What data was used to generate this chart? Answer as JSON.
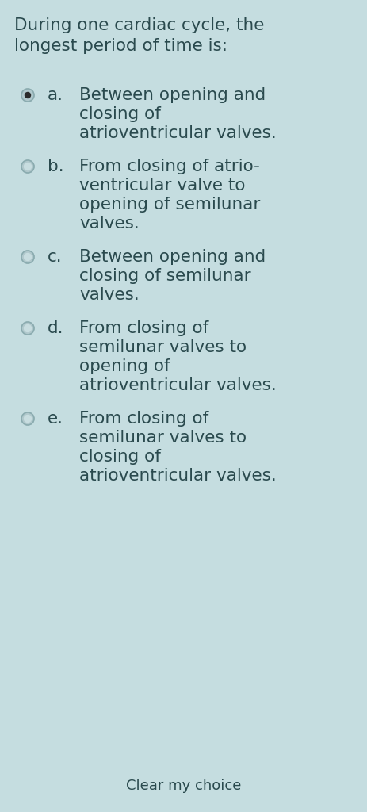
{
  "background_color": "#c5dde0",
  "text_color": "#2a4a4e",
  "title_line1": "During one cardiac cycle, the",
  "title_line2": "longest period of time is:",
  "title_fontsize": 15.5,
  "options": [
    {
      "label": "a.",
      "lines": [
        "Between opening and",
        "closing of",
        "atrioventricular valves."
      ],
      "selected": true
    },
    {
      "label": "b.",
      "lines": [
        "From closing of atrio-",
        "ventricular valve to",
        "opening of semilunar",
        "valves."
      ],
      "selected": false
    },
    {
      "label": "c.",
      "lines": [
        "Between opening and",
        "closing of semilunar",
        "valves."
      ],
      "selected": false
    },
    {
      "label": "d.",
      "lines": [
        "From closing of",
        "semilunar valves to",
        "opening of",
        "atrioventricular valves."
      ],
      "selected": false
    },
    {
      "label": "e.",
      "lines": [
        "From closing of",
        "semilunar valves to",
        "closing of",
        "atrioventricular valves."
      ],
      "selected": false
    }
  ],
  "footer": "Clear my choice",
  "footer_fontsize": 13,
  "option_fontsize": 15.5,
  "radio_outer_color": "#b0c8cc",
  "radio_border_color": "#8aabaf",
  "radio_selected_dot": "#2a2a2a",
  "radio_unselected_inner": "#c8dde0"
}
